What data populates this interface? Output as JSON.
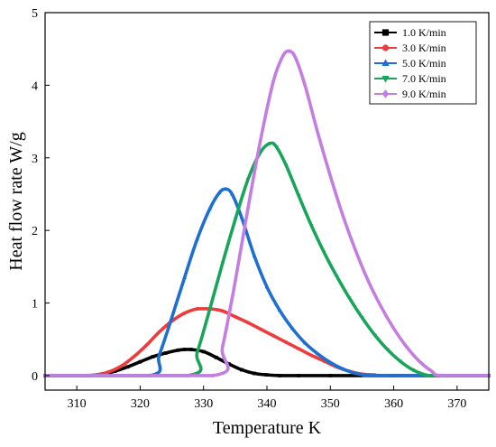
{
  "chart_data": {
    "type": "line",
    "title": "",
    "xlabel": "Temperature  K",
    "ylabel": "Heat flow rate  W/g",
    "xlim": [
      305,
      375
    ],
    "ylim": [
      -0.2,
      5
    ],
    "xticks": [
      310,
      320,
      330,
      340,
      350,
      360,
      370
    ],
    "yticks": [
      0,
      1,
      2,
      3,
      4,
      5
    ],
    "grid": false,
    "legend_position": "top-right",
    "series": [
      {
        "name": "1.0 K/min",
        "color": "#000000",
        "marker": "square",
        "x": [
          305,
          310,
          312,
          314,
          316,
          318,
          320,
          322,
          324,
          326,
          327,
          328,
          330,
          332,
          334,
          336,
          338,
          340,
          342,
          345,
          350,
          360,
          375
        ],
        "y": [
          0,
          0,
          0,
          0.02,
          0.06,
          0.12,
          0.19,
          0.26,
          0.31,
          0.35,
          0.36,
          0.36,
          0.33,
          0.25,
          0.16,
          0.08,
          0.03,
          0.01,
          0,
          0,
          0,
          0,
          0
        ]
      },
      {
        "name": "3.0 K/min",
        "color": "#ef3b3b",
        "marker": "circle",
        "x": [
          305,
          311,
          313,
          315,
          317,
          319,
          321,
          323,
          325,
          327,
          329,
          331,
          333,
          335,
          337,
          339,
          341,
          343,
          345,
          347,
          349,
          351,
          353,
          355,
          357,
          359,
          375
        ],
        "y": [
          0,
          0,
          0.01,
          0.05,
          0.13,
          0.26,
          0.42,
          0.6,
          0.75,
          0.86,
          0.92,
          0.92,
          0.89,
          0.81,
          0.73,
          0.64,
          0.55,
          0.46,
          0.37,
          0.28,
          0.2,
          0.12,
          0.06,
          0.02,
          0.01,
          0,
          0
        ]
      },
      {
        "name": "5.0 K/min",
        "color": "#1f6fd1",
        "marker": "triangle-up",
        "x": [
          305,
          321.5,
          323,
          325,
          327,
          329,
          331,
          332.5,
          333.5,
          334.5,
          336,
          338,
          340,
          342,
          344,
          346,
          348,
          350,
          352,
          354,
          355.5,
          357,
          375
        ],
        "y": [
          0,
          0,
          0.28,
          0.8,
          1.35,
          1.88,
          2.3,
          2.52,
          2.57,
          2.5,
          2.18,
          1.65,
          1.22,
          0.9,
          0.65,
          0.45,
          0.3,
          0.18,
          0.09,
          0.03,
          0.01,
          0,
          0
        ]
      },
      {
        "name": "7.0 K/min",
        "color": "#18a55a",
        "marker": "triangle-down",
        "x": [
          305,
          327.5,
          329,
          331,
          333,
          335,
          337,
          339,
          340.5,
          341.5,
          343,
          345,
          347,
          349,
          351,
          353,
          355,
          357,
          359,
          361,
          363,
          365,
          366,
          375
        ],
        "y": [
          0,
          0,
          0.32,
          0.92,
          1.55,
          2.15,
          2.7,
          3.08,
          3.2,
          3.15,
          2.9,
          2.48,
          2.07,
          1.7,
          1.37,
          1.07,
          0.8,
          0.56,
          0.36,
          0.2,
          0.08,
          0.01,
          0,
          0
        ]
      },
      {
        "name": "9.0 K/min",
        "color": "#c47de0",
        "marker": "diamond",
        "x": [
          305,
          331.5,
          333,
          335,
          337,
          339,
          341,
          342.5,
          343.5,
          344.5,
          346,
          348,
          350,
          352,
          354,
          356,
          358,
          360,
          362,
          364,
          366,
          367.5,
          375
        ],
        "y": [
          0,
          0,
          0.4,
          1.3,
          2.3,
          3.25,
          4.05,
          4.4,
          4.47,
          4.38,
          4.0,
          3.35,
          2.75,
          2.2,
          1.72,
          1.3,
          0.95,
          0.65,
          0.4,
          0.2,
          0.06,
          0,
          0
        ]
      }
    ]
  }
}
